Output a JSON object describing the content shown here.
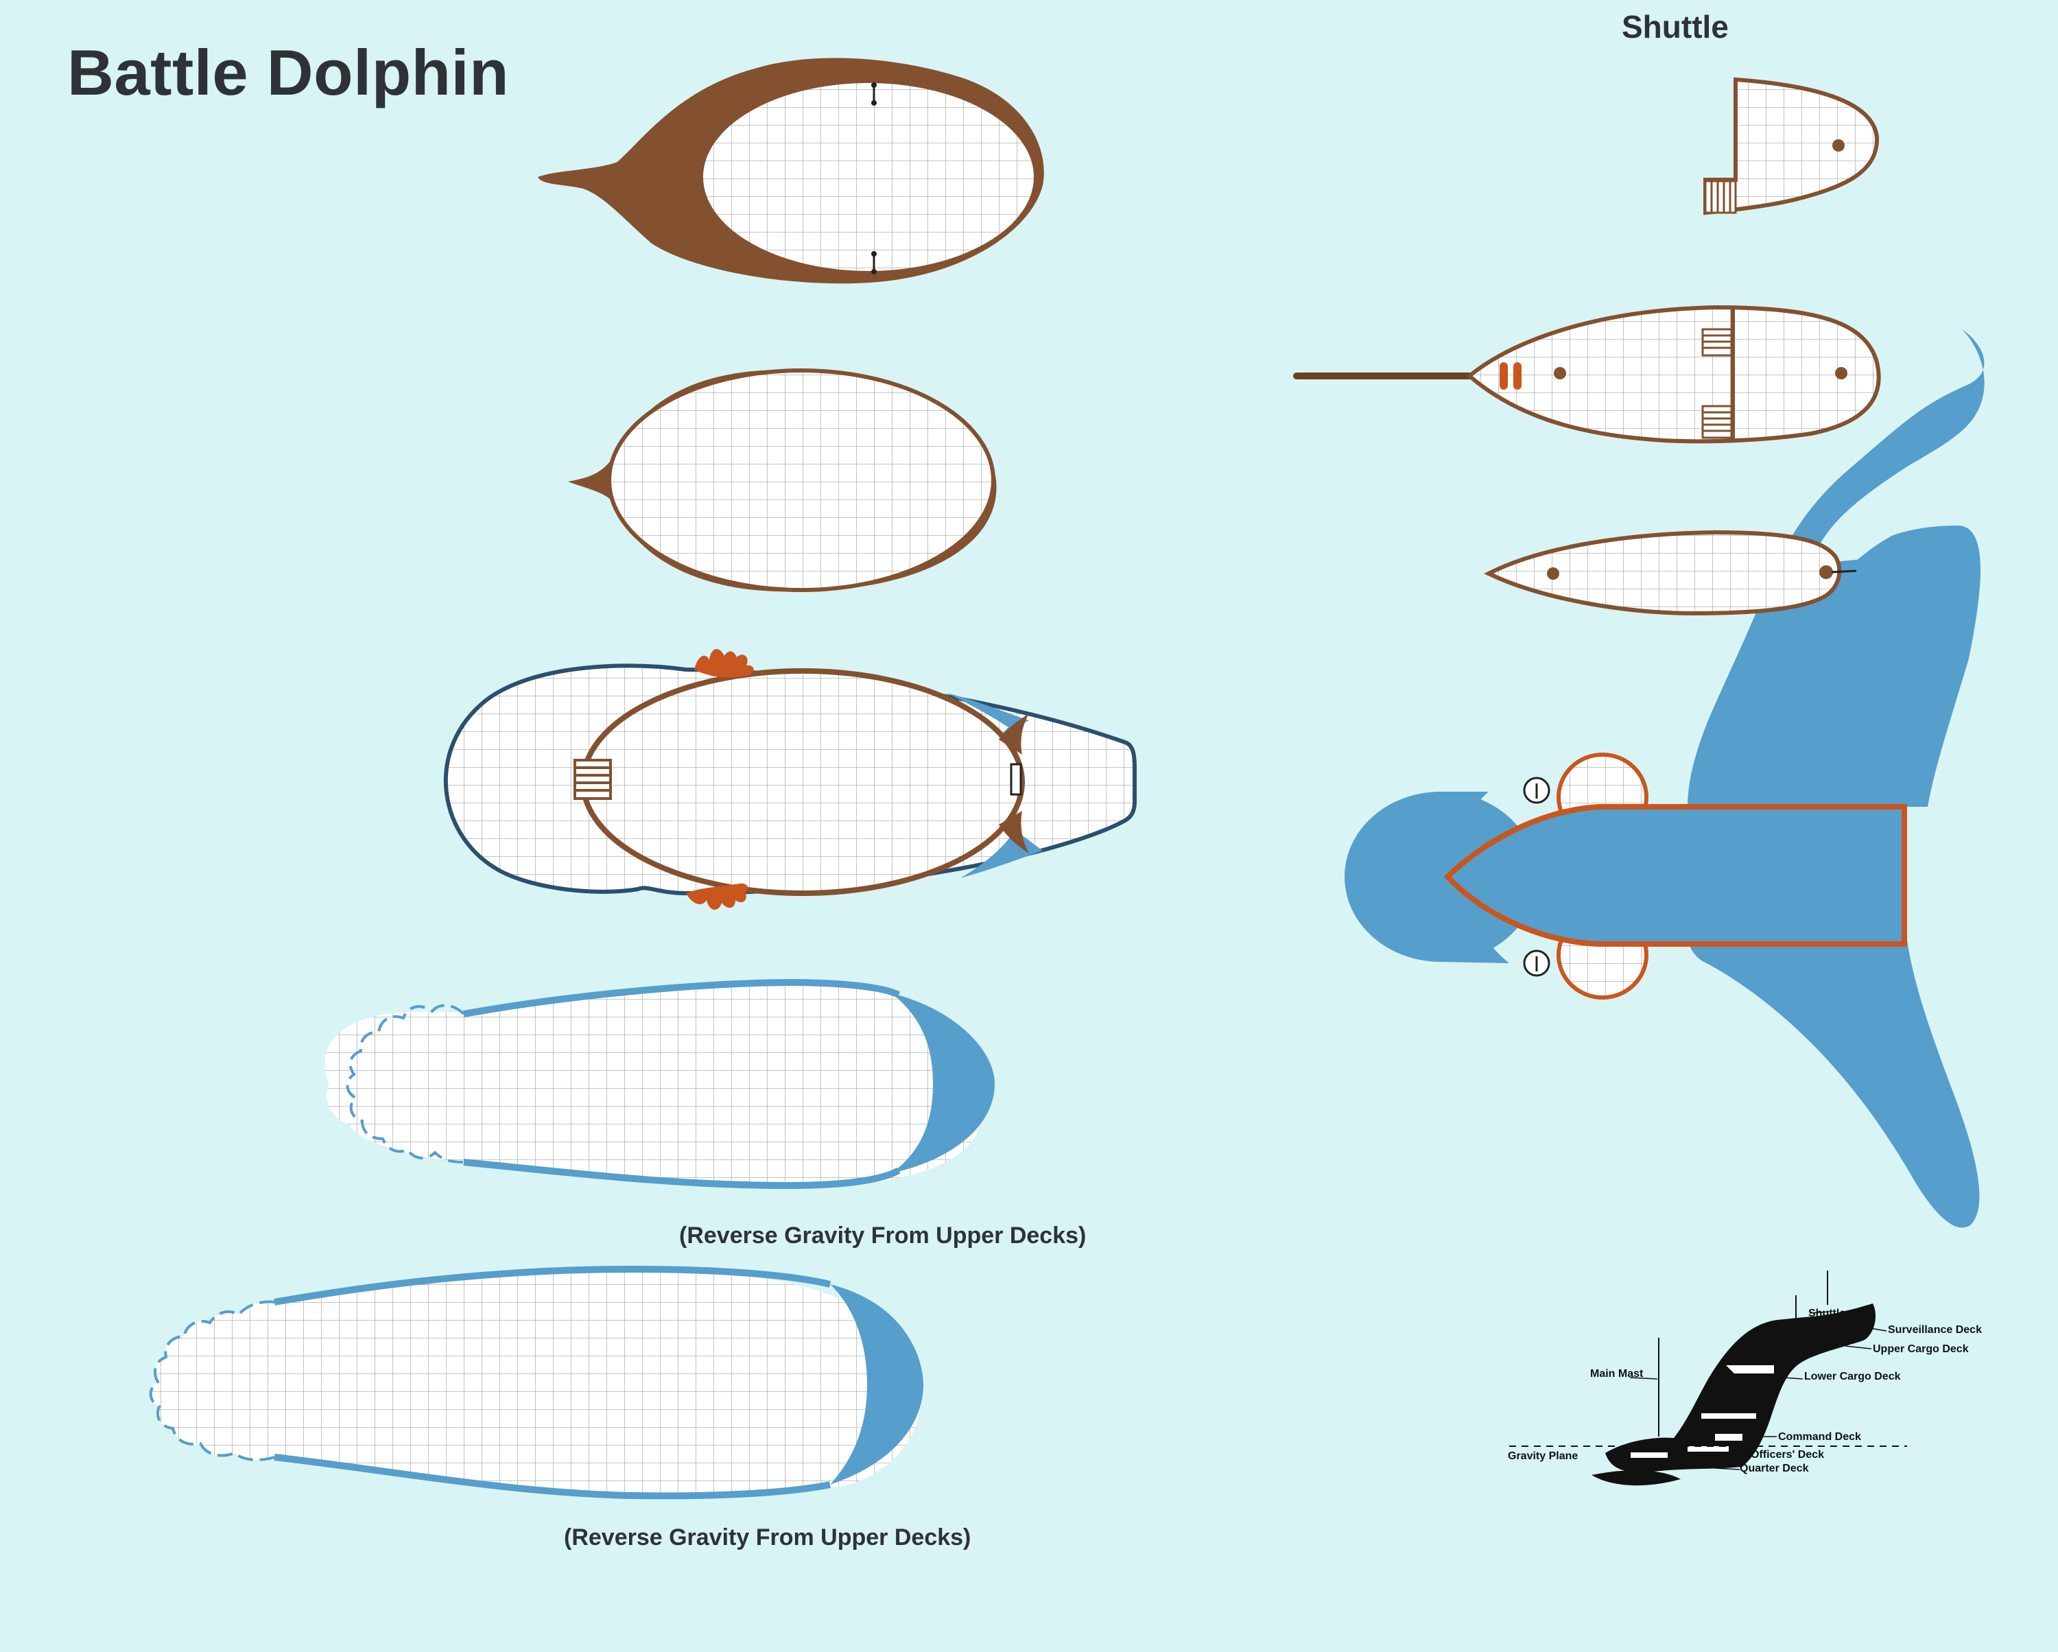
{
  "title": "Battle Dolphin",
  "shuttle_title": "Shuttle",
  "captions": {
    "deck_five": "(Reverse Gravity From Upper Decks)",
    "deck_six": "(Reverse Gravity From Upper Decks)"
  },
  "side_view_labels": {
    "shuttle": "Shuttle",
    "surveillance_deck": "Surveillance Deck",
    "upper_cargo_deck": "Upper Cargo Deck",
    "lower_cargo_deck": "Lower Cargo Deck",
    "main_mast": "Main Mast",
    "command_deck": "Command Deck",
    "gravity_plane": "Gravity Plane",
    "officers_deck": "Officers' Deck",
    "quarter_deck": "Quarter Deck"
  },
  "colors": {
    "background": "#d8f4f5",
    "hull_brown": "#83512f",
    "fin_blue": "#569ecb",
    "trim_orange": "#c9561e",
    "outline_navy": "#2c4f6e",
    "grid": "#b3b3b3",
    "text": "#2e3236"
  }
}
